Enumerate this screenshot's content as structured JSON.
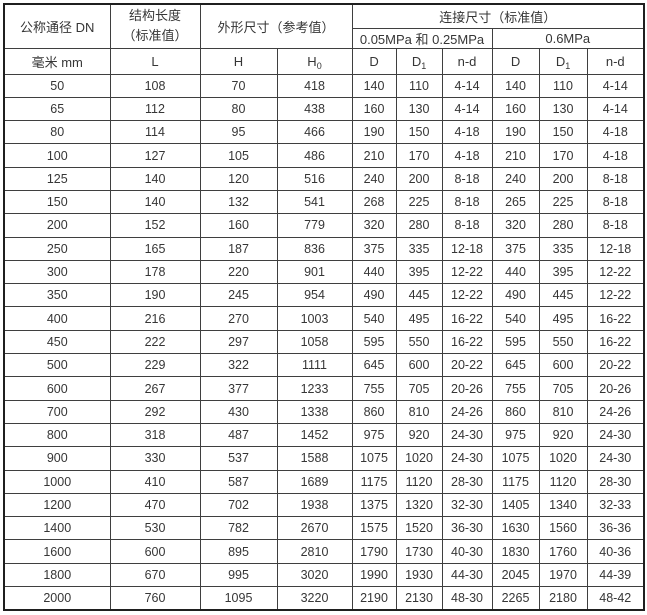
{
  "table": {
    "header": {
      "dn": "公称通径 DN",
      "length_line1": "结构长度",
      "length_line2": "（标准值）",
      "outline": "外形尺寸（参考值）",
      "connection": "连接尺寸（标准值）",
      "group_low": "0.05MPa 和 0.25MPa",
      "group_high": "0.6MPa",
      "unit_dn": "毫米 mm",
      "l": "L",
      "h": "H",
      "h0_base": "H",
      "h0_sub": "0",
      "d_low": "D",
      "d1_low_base": "D",
      "d1_low_sub": "1",
      "nd_low": "n-d",
      "d_high": "D",
      "d1_high_base": "D",
      "d1_high_sub": "1",
      "nd_high": "n-d"
    },
    "rows": [
      [
        "50",
        "108",
        "70",
        "418",
        "140",
        "110",
        "4-14",
        "140",
        "110",
        "4-14"
      ],
      [
        "65",
        "112",
        "80",
        "438",
        "160",
        "130",
        "4-14",
        "160",
        "130",
        "4-14"
      ],
      [
        "80",
        "114",
        "95",
        "466",
        "190",
        "150",
        "4-18",
        "190",
        "150",
        "4-18"
      ],
      [
        "100",
        "127",
        "105",
        "486",
        "210",
        "170",
        "4-18",
        "210",
        "170",
        "4-18"
      ],
      [
        "125",
        "140",
        "120",
        "516",
        "240",
        "200",
        "8-18",
        "240",
        "200",
        "8-18"
      ],
      [
        "150",
        "140",
        "132",
        "541",
        "268",
        "225",
        "8-18",
        "265",
        "225",
        "8-18"
      ],
      [
        "200",
        "152",
        "160",
        "779",
        "320",
        "280",
        "8-18",
        "320",
        "280",
        "8-18"
      ],
      [
        "250",
        "165",
        "187",
        "836",
        "375",
        "335",
        "12-18",
        "375",
        "335",
        "12-18"
      ],
      [
        "300",
        "178",
        "220",
        "901",
        "440",
        "395",
        "12-22",
        "440",
        "395",
        "12-22"
      ],
      [
        "350",
        "190",
        "245",
        "954",
        "490",
        "445",
        "12-22",
        "490",
        "445",
        "12-22"
      ],
      [
        "400",
        "216",
        "270",
        "1003",
        "540",
        "495",
        "16-22",
        "540",
        "495",
        "16-22"
      ],
      [
        "450",
        "222",
        "297",
        "1058",
        "595",
        "550",
        "16-22",
        "595",
        "550",
        "16-22"
      ],
      [
        "500",
        "229",
        "322",
        "1111",
        "645",
        "600",
        "20-22",
        "645",
        "600",
        "20-22"
      ],
      [
        "600",
        "267",
        "377",
        "1233",
        "755",
        "705",
        "20-26",
        "755",
        "705",
        "20-26"
      ],
      [
        "700",
        "292",
        "430",
        "1338",
        "860",
        "810",
        "24-26",
        "860",
        "810",
        "24-26"
      ],
      [
        "800",
        "318",
        "487",
        "1452",
        "975",
        "920",
        "24-30",
        "975",
        "920",
        "24-30"
      ],
      [
        "900",
        "330",
        "537",
        "1588",
        "1075",
        "1020",
        "24-30",
        "1075",
        "1020",
        "24-30"
      ],
      [
        "1000",
        "410",
        "587",
        "1689",
        "1175",
        "1120",
        "28-30",
        "1175",
        "1120",
        "28-30"
      ],
      [
        "1200",
        "470",
        "702",
        "1938",
        "1375",
        "1320",
        "32-30",
        "1405",
        "1340",
        "32-33"
      ],
      [
        "1400",
        "530",
        "782",
        "2670",
        "1575",
        "1520",
        "36-30",
        "1630",
        "1560",
        "36-36"
      ],
      [
        "1600",
        "600",
        "895",
        "2810",
        "1790",
        "1730",
        "40-30",
        "1830",
        "1760",
        "40-36"
      ],
      [
        "1800",
        "670",
        "995",
        "3020",
        "1990",
        "1930",
        "44-30",
        "2045",
        "1970",
        "44-39"
      ],
      [
        "2000",
        "760",
        "1095",
        "3220",
        "2190",
        "2130",
        "48-30",
        "2265",
        "2180",
        "48-42"
      ]
    ]
  },
  "colors": {
    "background": "#ffffff",
    "border_inner": "#3f3f3f",
    "border_outer": "#1f1f1f",
    "text": "#363636"
  }
}
